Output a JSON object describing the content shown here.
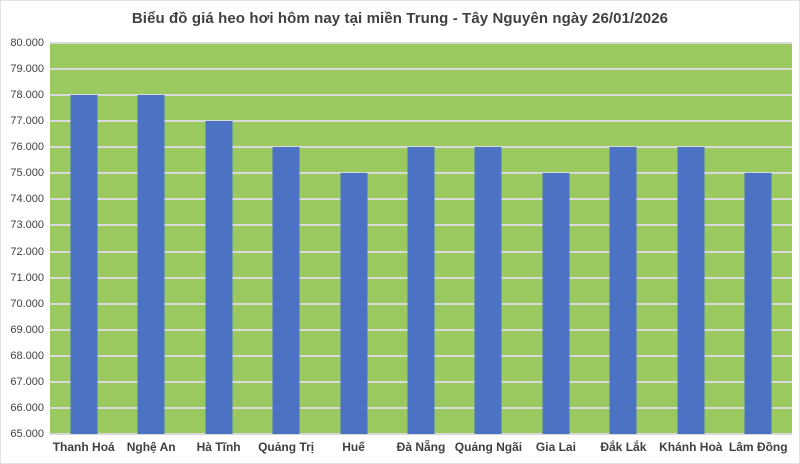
{
  "title": "Biểu đồ giá heo hơi hôm nay tại miền Trung - Tây Nguyên ngày 26/01/2026",
  "colors": {
    "plot_background": "#9aca5f",
    "bar_fill": "#4c72c4",
    "gridline": "#d9d9d9",
    "text": "#404040",
    "page_background": "#ffffff"
  },
  "chart_data": {
    "type": "bar",
    "title": "Biểu đồ giá heo hơi hôm nay tại miền Trung - Tây Nguyên ngày 26/01/2026",
    "categories": [
      "Thanh Hoá",
      "Nghệ An",
      "Hà Tĩnh",
      "Quảng Trị",
      "Huế",
      "Đà Nẵng",
      "Quảng Ngãi",
      "Gia Lai",
      "Đắk Lắk",
      "Khánh Hoà",
      "Lâm Đồng"
    ],
    "values": [
      78000,
      78000,
      77000,
      76000,
      75000,
      76000,
      76000,
      75000,
      76000,
      76000,
      75000
    ],
    "xlabel": "",
    "ylabel": "",
    "ylim": [
      65000,
      80000
    ],
    "y_step": 1000,
    "y_tick_labels": [
      "80.000",
      "79.000",
      "78.000",
      "77.000",
      "76.000",
      "75.000",
      "74.000",
      "73.000",
      "72.000",
      "71.000",
      "70.000",
      "69.000",
      "68.000",
      "67.000",
      "66.000",
      "65.000"
    ],
    "grid": "horizontal",
    "legend": "none"
  }
}
